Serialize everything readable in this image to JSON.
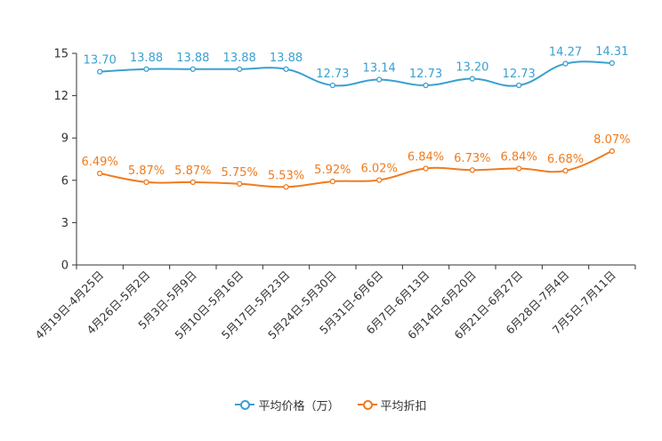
{
  "chart_data": {
    "type": "line",
    "categories": [
      "4月19日-4月25日",
      "4月26日-5月2日",
      "5月3日-5月9日",
      "5月10日-5月16日",
      "5月17日-5月23日",
      "5月24日-5月30日",
      "5月31日-6月6日",
      "6月7日-6月13日",
      "6月14日-6月20日",
      "6月21日-6月27日",
      "6月28日-7月4日",
      "7月5日-7月11日"
    ],
    "y_ticks": [
      "0",
      "3",
      "6",
      "9",
      "12",
      "15"
    ],
    "ylim": [
      0,
      15
    ],
    "series": [
      {
        "name": "平均价格（万）",
        "color": "#3ba0d1",
        "values": [
          13.7,
          13.88,
          13.88,
          13.88,
          13.88,
          12.73,
          13.14,
          12.73,
          13.2,
          12.73,
          14.27,
          14.31
        ],
        "labels": [
          "13.70",
          "13.88",
          "13.88",
          "13.88",
          "13.88",
          "12.73",
          "13.14",
          "12.73",
          "13.20",
          "12.73",
          "14.27",
          "14.31"
        ]
      },
      {
        "name": "平均折扣",
        "color": "#f07b1d",
        "values": [
          6.49,
          5.87,
          5.87,
          5.75,
          5.53,
          5.92,
          6.02,
          6.84,
          6.73,
          6.84,
          6.68,
          8.07
        ],
        "labels": [
          "6.49%",
          "5.87%",
          "5.87%",
          "5.75%",
          "5.53%",
          "5.92%",
          "6.02%",
          "6.84%",
          "6.73%",
          "6.84%",
          "6.68%",
          "8.07%"
        ]
      }
    ]
  }
}
